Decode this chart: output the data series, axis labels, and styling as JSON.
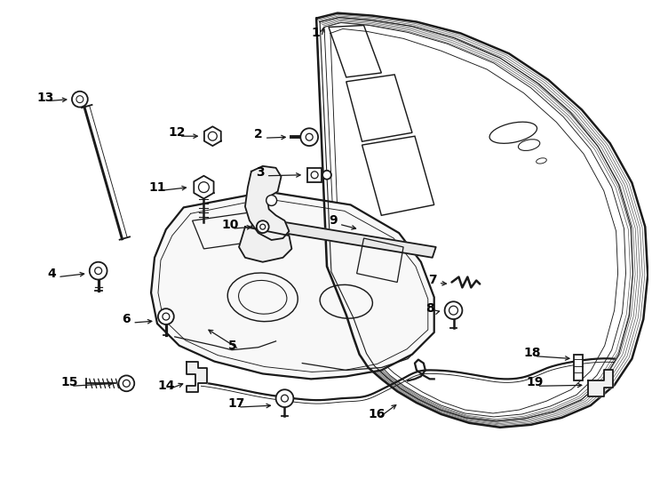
{
  "background_color": "#ffffff",
  "line_color": "#1a1a1a",
  "line_width": 1.3,
  "label_fontsize": 10,
  "label_color": "#000000",
  "figsize": [
    7.34,
    5.4
  ],
  "dpi": 100
}
